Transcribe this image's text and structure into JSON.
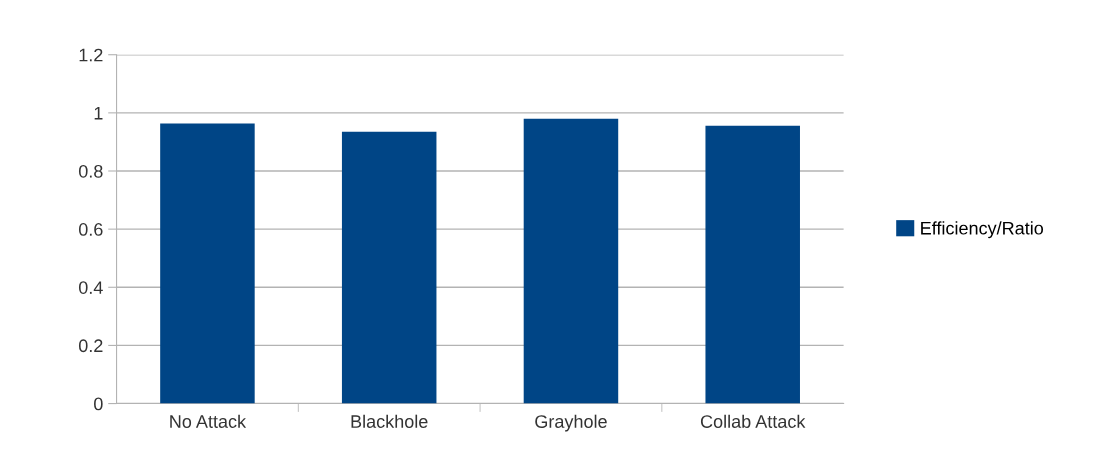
{
  "chart_data": {
    "type": "bar",
    "categories": [
      "No Attack",
      "Blackhole",
      "Grayhole",
      "Collab Attack"
    ],
    "series": [
      {
        "name": "Efficiency/Ratio",
        "color": "#004586",
        "values": [
          0.963,
          0.935,
          0.98,
          0.956
        ]
      }
    ],
    "ylim": [
      0,
      1.2
    ],
    "yticks": [
      {
        "value": 0,
        "label": "0"
      },
      0.2,
      0.4,
      0.6,
      0.8,
      {
        "value": 1,
        "label": "1"
      },
      1.2
    ],
    "grid": "y",
    "legend": "right"
  }
}
